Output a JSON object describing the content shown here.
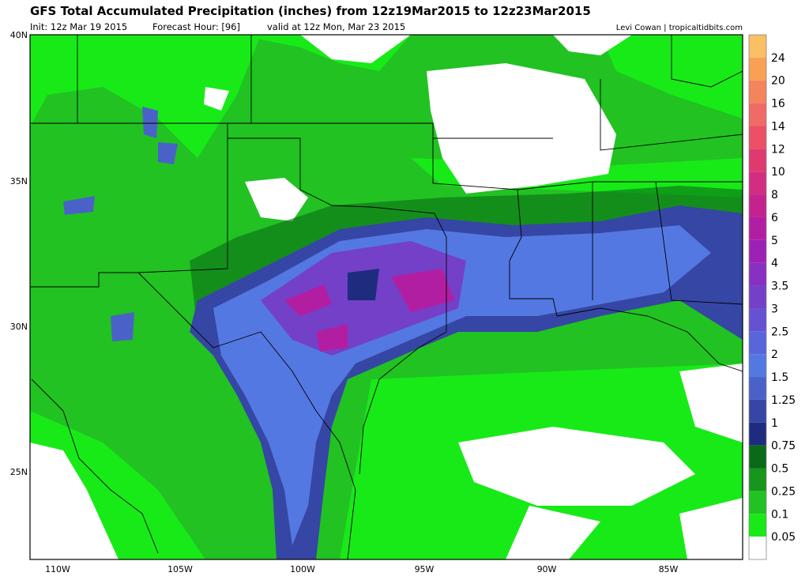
{
  "header": {
    "title": "GFS Total Accumulated Precipitation (inches) from 12z19Mar2015 to 12z23Mar2015",
    "init": "Init: 12z Mar 19 2015",
    "forecast_hour": "Forecast Hour: [96]",
    "valid": "valid at 12z Mon, Mar 23 2015",
    "credit": "Levi Cowan | tropicaltidbits.com"
  },
  "map": {
    "lat_labels": [
      "40N",
      "35N",
      "30N",
      "25N"
    ],
    "lon_labels": [
      "110W",
      "105W",
      "100W",
      "95W",
      "90W",
      "85W"
    ]
  },
  "colorbar": {
    "labels": [
      "24",
      "20",
      "16",
      "14",
      "12",
      "10",
      "8",
      "6",
      "5",
      "4",
      "3.5",
      "3",
      "2.5",
      "2",
      "1.5",
      "1.25",
      "1",
      "0.75",
      "0.5",
      "0.25",
      "0.1",
      "0.05"
    ],
    "colors": [
      "#fbbf64",
      "#f8a155",
      "#f4845c",
      "#f06a66",
      "#ec4f66",
      "#df3a70",
      "#d22d80",
      "#c4238f",
      "#b21ea2",
      "#9c22b4",
      "#8830c0",
      "#7440c8",
      "#6452d2",
      "#5866da",
      "#5478e2",
      "#4a62c8",
      "#3646a4",
      "#1e2c80",
      "#0a6a18",
      "#16961c",
      "#22c222",
      "#18ea18",
      "#ffffff"
    ]
  }
}
